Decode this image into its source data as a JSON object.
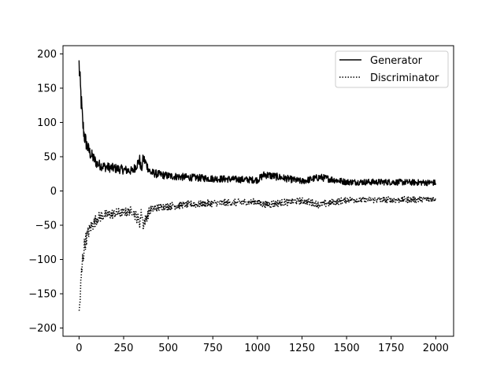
{
  "chart_data": {
    "type": "line",
    "title": "",
    "xlabel": "",
    "ylabel": "",
    "xlim": [
      -90,
      2100
    ],
    "ylim": [
      -212,
      212
    ],
    "x_ticks": [
      0,
      250,
      500,
      750,
      1000,
      1250,
      1500,
      1750,
      2000
    ],
    "y_ticks": [
      200,
      150,
      100,
      50,
      0,
      -50,
      -100,
      -150,
      -200
    ],
    "grid": false,
    "legend_position": "top-right",
    "series": [
      {
        "name": "Generator",
        "line_style": "solid",
        "color": "#000000",
        "x": [
          0,
          5,
          10,
          15,
          20,
          25,
          30,
          40,
          50,
          60,
          80,
          100,
          125,
          150,
          200,
          250,
          300,
          340,
          350,
          360,
          400,
          450,
          500,
          600,
          750,
          1000,
          1040,
          1250,
          1350,
          1500,
          1750,
          2000
        ],
        "y": [
          185,
          160,
          140,
          120,
          100,
          90,
          80,
          70,
          62,
          56,
          48,
          40,
          37,
          35,
          33,
          31,
          29,
          45,
          30,
          48,
          27,
          24,
          22,
          20,
          18,
          16,
          24,
          14,
          20,
          13,
          13,
          12
        ]
      },
      {
        "name": "Discriminator",
        "line_style": "dotted",
        "color": "#000000",
        "x": [
          0,
          5,
          10,
          15,
          20,
          25,
          30,
          40,
          50,
          60,
          80,
          100,
          125,
          150,
          200,
          250,
          300,
          340,
          350,
          360,
          400,
          450,
          500,
          600,
          750,
          1000,
          1040,
          1250,
          1350,
          1500,
          1750,
          2000
        ],
        "y": [
          -185,
          -160,
          -140,
          -120,
          -100,
          -90,
          -80,
          -70,
          -62,
          -56,
          -48,
          -40,
          -37,
          -35,
          -33,
          -31,
          -29,
          -45,
          -30,
          -48,
          -27,
          -24,
          -22,
          -20,
          -18,
          -16,
          -20,
          -14,
          -20,
          -13,
          -13,
          -12
        ]
      }
    ]
  }
}
